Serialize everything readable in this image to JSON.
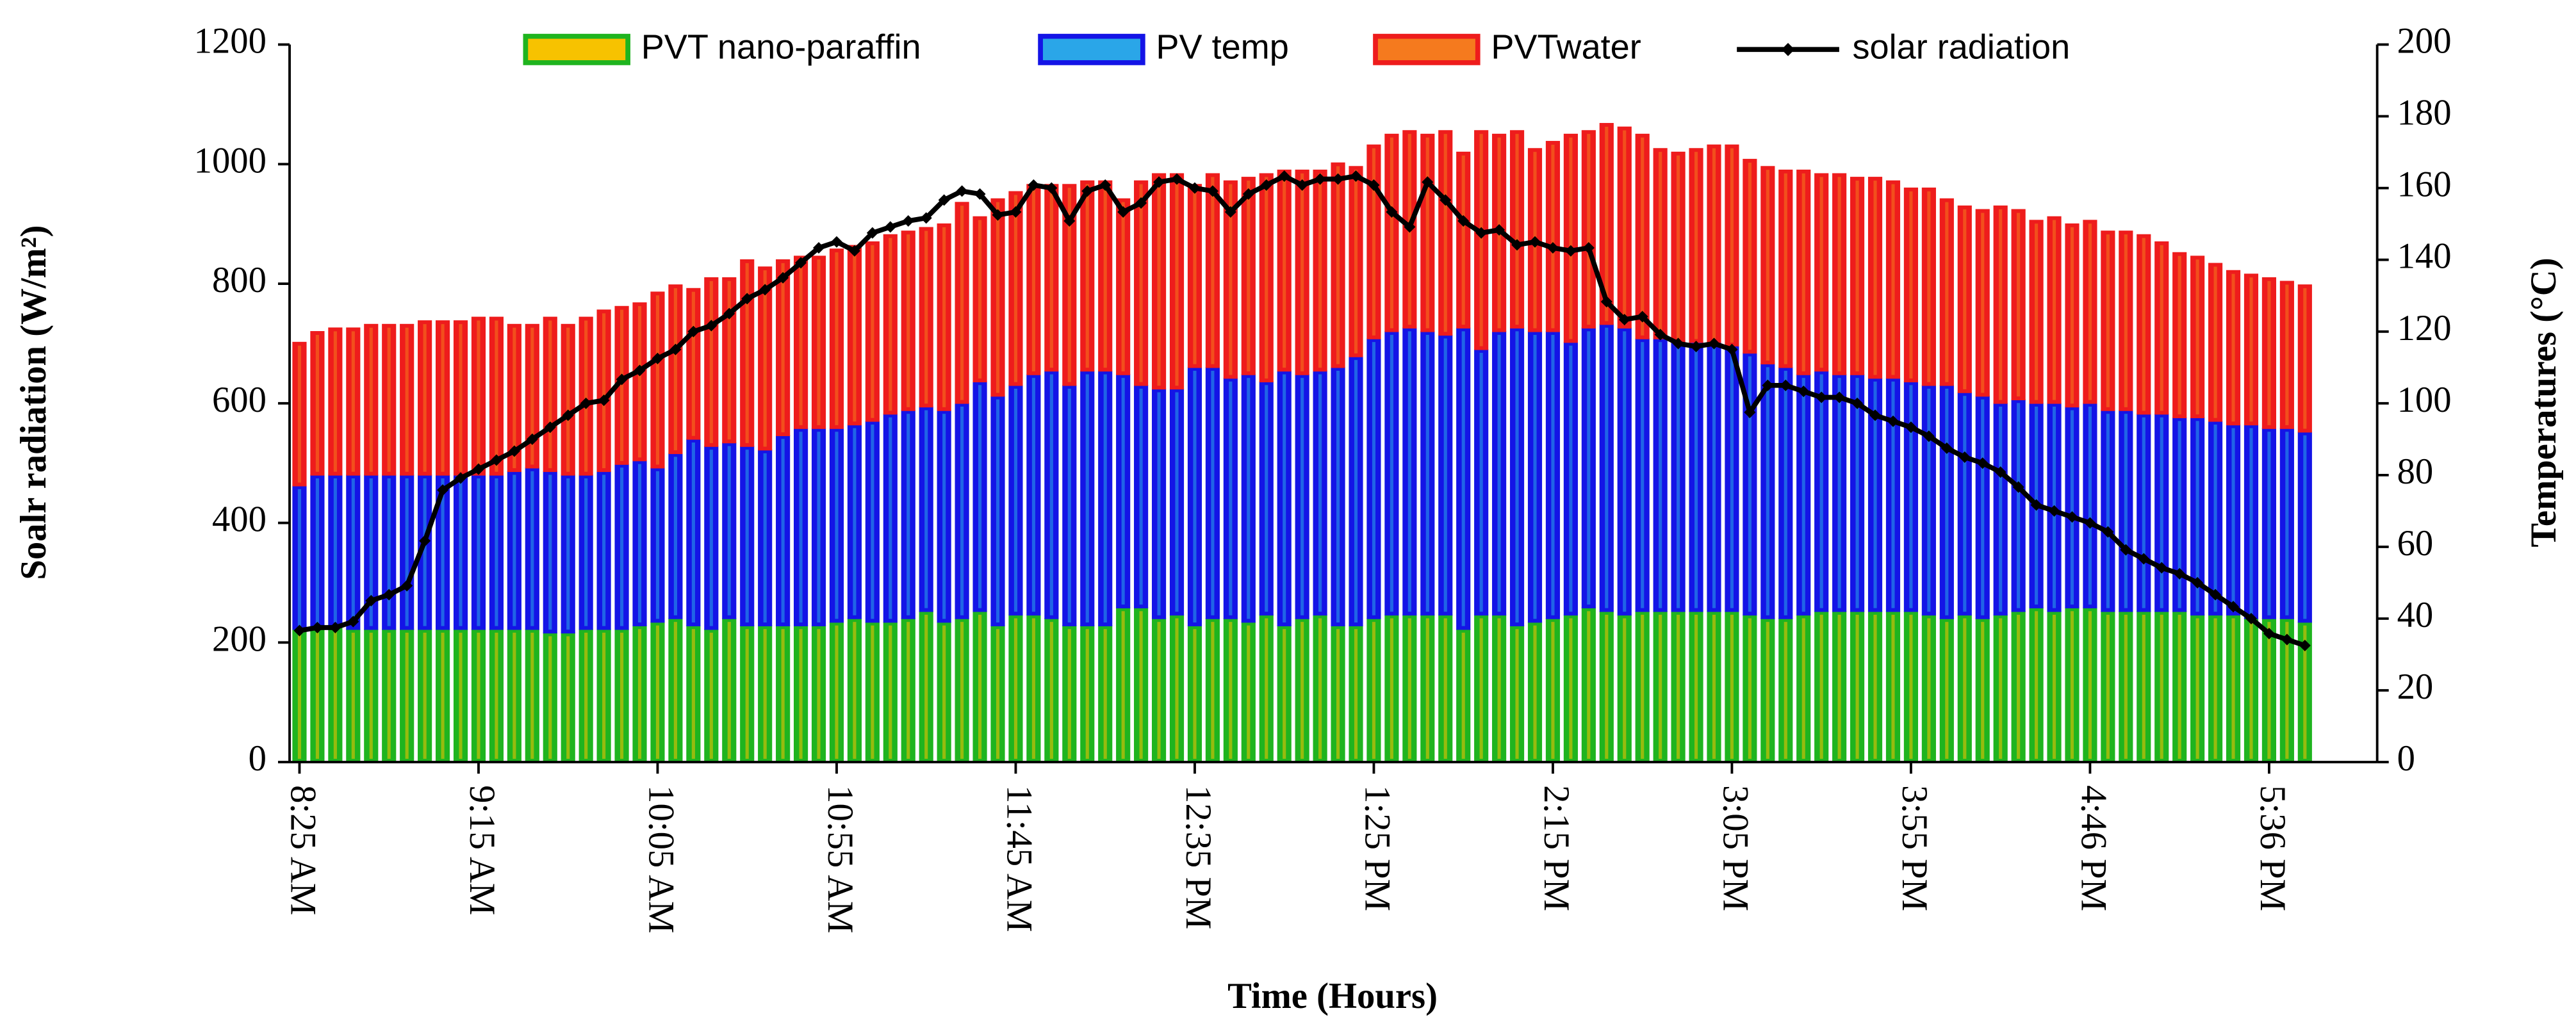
{
  "chart_data": {
    "type": "bar",
    "stacked": true,
    "legend": "top",
    "xlabel": "Time (Hours)",
    "ylabel": "Soalr radiation (W/m²)",
    "y2label": "Temperatures (°C)",
    "categories": [
      "8:25 AM",
      null,
      null,
      null,
      null,
      null,
      null,
      null,
      null,
      null,
      "9:15 AM",
      null,
      null,
      null,
      null,
      null,
      null,
      null,
      null,
      null,
      "10:05 AM",
      null,
      null,
      null,
      null,
      null,
      null,
      null,
      null,
      null,
      "10:55 AM",
      null,
      null,
      null,
      null,
      null,
      null,
      null,
      null,
      null,
      "11:45 AM",
      null,
      null,
      null,
      null,
      null,
      null,
      null,
      null,
      null,
      "12:35 PM",
      null,
      null,
      null,
      null,
      null,
      null,
      null,
      null,
      null,
      "1:25 PM",
      null,
      null,
      null,
      null,
      null,
      null,
      null,
      null,
      null,
      "2:15 PM",
      null,
      null,
      null,
      null,
      null,
      null,
      null,
      null,
      null,
      "3:05 PM",
      null,
      null,
      null,
      null,
      null,
      null,
      null,
      null,
      null,
      "3:55 PM",
      null,
      null,
      null,
      null,
      null,
      null,
      null,
      null,
      null,
      "4:46 PM",
      null,
      null,
      null,
      null,
      null,
      null,
      null,
      null,
      null,
      "5:36 PM",
      null,
      null
    ],
    "ylim": [
      0,
      1200
    ],
    "yticks": [
      0,
      200,
      400,
      600,
      800,
      1000,
      1200
    ],
    "y2lim": [
      0,
      200
    ],
    "y2ticks": [
      0,
      20,
      40,
      60,
      80,
      100,
      120,
      140,
      160,
      180,
      200
    ],
    "series": [
      {
        "name": "PVT nano-paraffin",
        "color": "#1fb41f",
        "legend_fill": "#f7c200",
        "axis": "y2",
        "values": [
          37,
          37,
          38,
          37,
          37,
          37,
          37,
          37,
          37,
          37,
          37,
          37,
          37,
          37,
          36,
          36,
          37,
          37,
          37,
          38,
          39,
          40,
          38,
          37,
          40,
          38,
          38,
          38,
          38,
          38,
          39,
          40,
          39,
          39,
          40,
          42,
          39,
          40,
          42,
          38,
          41,
          41,
          40,
          38,
          38,
          38,
          43,
          43,
          40,
          41,
          38,
          40,
          40,
          39,
          41,
          38,
          40,
          41,
          38,
          38,
          40,
          41,
          41,
          41,
          41,
          37,
          41,
          41,
          38,
          39,
          40,
          41,
          43,
          42,
          41,
          42,
          42,
          42,
          42,
          42,
          42,
          41,
          40,
          40,
          41,
          42,
          42,
          42,
          42,
          42,
          42,
          41,
          40,
          41,
          40,
          41,
          42,
          43,
          42,
          43,
          43,
          42,
          42,
          42,
          42,
          42,
          41,
          41,
          41,
          40,
          40,
          40,
          39
        ]
      },
      {
        "name": "PV temp",
        "color": "#1414e6",
        "legend_fill": "#2aa6e8",
        "axis": "y2",
        "values": [
          40,
          43,
          42,
          43,
          43,
          43,
          43,
          43,
          43,
          43,
          43,
          43,
          44,
          45,
          45,
          44,
          43,
          44,
          46,
          46,
          43,
          46,
          52,
          51,
          49,
          50,
          49,
          53,
          55,
          55,
          54,
          54,
          56,
          58,
          58,
          57,
          59,
          60,
          64,
          64,
          64,
          67,
          69,
          67,
          71,
          71,
          65,
          62,
          64,
          63,
          72,
          70,
          67,
          69,
          65,
          71,
          68,
          68,
          72,
          75,
          78,
          79,
          80,
          79,
          78,
          84,
          74,
          79,
          83,
          81,
          80,
          76,
          78,
          80,
          80,
          76,
          76,
          75,
          75,
          75,
          74,
          73,
          71,
          70,
          67,
          67,
          66,
          66,
          65,
          65,
          64,
          64,
          65,
          62,
          62,
          59,
          59,
          57,
          58,
          56,
          57,
          56,
          56,
          55,
          55,
          54,
          55,
          54,
          53,
          54,
          53,
          53,
          53
        ]
      },
      {
        "name": "PVTwater",
        "color": "#ee1c1c",
        "legend_fill": "#f57a1e",
        "axis": "y2",
        "values": [
          40,
          40,
          41,
          41,
          42,
          42,
          42,
          43,
          43,
          43,
          44,
          44,
          41,
          40,
          43,
          42,
          44,
          45,
          44,
          44,
          49,
          47,
          42,
          47,
          46,
          52,
          51,
          49,
          48,
          48,
          50,
          50,
          50,
          50,
          50,
          50,
          52,
          56,
          46,
          55,
          54,
          53,
          52,
          56,
          53,
          53,
          49,
          57,
          60,
          60,
          51,
          54,
          55,
          55,
          58,
          56,
          57,
          56,
          57,
          53,
          54,
          55,
          55,
          55,
          57,
          49,
          61,
          55,
          55,
          51,
          53,
          58,
          55,
          56,
          56,
          57,
          53,
          53,
          54,
          55,
          56,
          54,
          55,
          55,
          57,
          55,
          56,
          55,
          56,
          55,
          54,
          55,
          52,
          52,
          52,
          55,
          53,
          51,
          52,
          51,
          51,
          50,
          50,
          50,
          48,
          46,
          45,
          44,
          43,
          42,
          42,
          41,
          41
        ]
      },
      {
        "name": "solar radiation",
        "type": "line",
        "color": "#000000",
        "values": [
          220,
          225,
          225,
          235,
          270,
          280,
          295,
          370,
          455,
          475,
          490,
          505,
          520,
          540,
          560,
          580,
          600,
          605,
          640,
          655,
          675,
          690,
          720,
          730,
          750,
          775,
          790,
          810,
          835,
          860,
          870,
          855,
          885,
          895,
          905,
          910,
          940,
          955,
          950,
          915,
          920,
          965,
          960,
          905,
          955,
          965,
          920,
          935,
          970,
          975,
          960,
          955,
          920,
          950,
          965,
          980,
          965,
          975,
          975,
          980,
          965,
          920,
          895,
          970,
          940,
          905,
          885,
          890,
          865,
          870,
          860,
          855,
          860,
          770,
          740,
          745,
          715,
          700,
          695,
          700,
          690,
          585,
          630,
          630,
          620,
          610,
          610,
          600,
          580,
          570,
          560,
          545,
          525,
          510,
          500,
          485,
          460,
          430,
          420,
          410,
          400,
          385,
          355,
          340,
          325,
          315,
          300,
          280,
          260,
          240,
          215,
          205,
          195
        ]
      }
    ]
  }
}
